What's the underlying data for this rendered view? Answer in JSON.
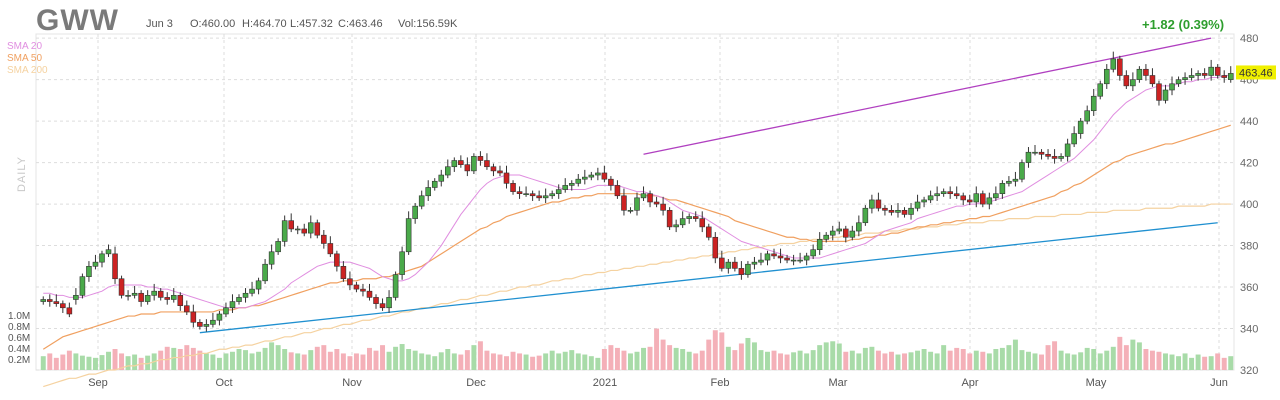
{
  "header": {
    "ticker": "GWW",
    "date": "Jun 3",
    "open": "O:460.00",
    "high": "H:464.70",
    "low": "L:457.32",
    "close": "C:463.46",
    "volume": "Vol:156.59K",
    "change": "+1.82 (0.39%)",
    "last_price": "463.46",
    "timeframe": "DAILY"
  },
  "legend": [
    {
      "label": "SMA 20",
      "color": "#e08ee0"
    },
    {
      "label": "SMA 50",
      "color": "#f0a060"
    },
    {
      "label": "SMA 200",
      "color": "#f5d2a0"
    }
  ],
  "colors": {
    "up": "#4aaa4a",
    "down": "#cc2222",
    "vol_up": "#a8dba8",
    "vol_down": "#f4b0b8",
    "upper_trend": "#b040c0",
    "lower_trend": "#2090d0",
    "price_tag": "#f0f000",
    "grid": "#dddddd"
  },
  "chart_data": {
    "type": "candlestick",
    "x_labels": [
      "Sep",
      "Oct",
      "Nov",
      "Dec",
      "2021",
      "Feb",
      "Mar",
      "Apr",
      "May",
      "Jun"
    ],
    "y_ticks": [
      320,
      340,
      360,
      380,
      400,
      420,
      440,
      460,
      480
    ],
    "volume_ticks": [
      "0.2M",
      "0.4M",
      "0.6M",
      "0.8M",
      "1.0M"
    ],
    "y_range": [
      320,
      482
    ],
    "volume_range": [
      0,
      1.05
    ],
    "grid": true,
    "legend_position": "top-left",
    "closes": [
      354,
      353,
      352,
      350,
      347,
      356,
      365,
      370,
      372,
      376,
      378,
      364,
      356,
      356,
      357,
      353,
      356,
      358,
      355,
      354,
      356,
      351,
      348,
      343,
      341,
      342,
      344,
      347,
      350,
      353,
      355,
      357,
      359,
      363,
      371,
      377,
      382,
      392,
      388,
      388,
      386,
      391,
      385,
      381,
      376,
      370,
      364,
      361,
      359,
      358,
      355,
      352,
      350,
      355,
      366,
      377,
      393,
      399,
      404,
      408,
      411,
      414,
      418,
      421,
      419,
      416,
      423,
      421,
      418,
      416,
      415,
      410,
      406,
      405,
      405,
      404,
      403,
      404,
      405,
      407,
      409,
      410,
      412,
      413,
      414,
      415,
      412,
      409,
      404,
      397,
      397,
      403,
      405,
      401,
      400,
      397,
      389,
      390,
      393,
      394,
      393,
      389,
      384,
      374,
      369,
      372,
      369,
      366,
      371,
      372,
      373,
      376,
      375,
      374,
      373,
      373,
      373,
      375,
      378,
      383,
      385,
      387,
      388,
      384,
      387,
      391,
      398,
      402,
      398,
      397,
      396,
      397,
      395,
      398,
      401,
      402,
      404,
      405,
      406,
      405,
      404,
      402,
      401,
      405,
      400,
      403,
      405,
      410,
      411,
      412,
      420,
      425,
      425,
      424,
      423,
      422,
      423,
      429,
      434,
      440,
      445,
      452,
      458,
      465,
      470,
      462,
      457,
      460,
      465,
      462,
      458,
      450,
      455,
      458,
      460,
      461,
      462,
      463,
      462,
      466,
      462,
      461,
      463
    ],
    "opens": [
      353,
      354,
      353,
      352,
      350,
      354,
      356,
      365,
      370,
      372,
      376,
      376,
      364,
      356,
      356,
      357,
      353,
      356,
      358,
      355,
      354,
      356,
      351,
      348,
      343,
      341,
      342,
      344,
      347,
      350,
      353,
      355,
      357,
      359,
      363,
      371,
      377,
      382,
      392,
      388,
      388,
      386,
      391,
      385,
      381,
      376,
      370,
      364,
      361,
      359,
      358,
      355,
      352,
      350,
      355,
      366,
      377,
      393,
      399,
      404,
      408,
      411,
      414,
      418,
      421,
      419,
      416,
      423,
      421,
      418,
      416,
      415,
      410,
      406,
      405,
      405,
      404,
      403,
      404,
      405,
      407,
      409,
      410,
      412,
      413,
      414,
      415,
      412,
      409,
      404,
      397,
      397,
      403,
      405,
      401,
      400,
      397,
      389,
      390,
      393,
      394,
      393,
      389,
      384,
      374,
      369,
      372,
      369,
      366,
      371,
      372,
      373,
      376,
      375,
      374,
      373,
      373,
      373,
      375,
      378,
      383,
      385,
      387,
      388,
      384,
      387,
      391,
      398,
      402,
      398,
      397,
      396,
      397,
      395,
      398,
      401,
      402,
      404,
      405,
      406,
      405,
      404,
      402,
      401,
      405,
      400,
      403,
      405,
      410,
      411,
      412,
      420,
      425,
      425,
      424,
      423,
      422,
      423,
      429,
      434,
      440,
      445,
      452,
      458,
      465,
      470,
      462,
      457,
      460,
      465,
      462,
      458,
      450,
      455,
      458,
      460,
      461,
      462,
      463,
      462,
      466,
      462,
      460
    ],
    "volumes": [
      0.25,
      0.3,
      0.22,
      0.28,
      0.35,
      0.3,
      0.26,
      0.24,
      0.22,
      0.27,
      0.33,
      0.38,
      0.3,
      0.25,
      0.28,
      0.22,
      0.26,
      0.3,
      0.35,
      0.42,
      0.4,
      0.38,
      0.45,
      0.4,
      0.35,
      0.3,
      0.28,
      0.22,
      0.3,
      0.33,
      0.38,
      0.36,
      0.3,
      0.33,
      0.4,
      0.5,
      0.45,
      0.38,
      0.32,
      0.3,
      0.28,
      0.36,
      0.42,
      0.45,
      0.33,
      0.38,
      0.3,
      0.25,
      0.3,
      0.28,
      0.4,
      0.35,
      0.45,
      0.33,
      0.42,
      0.47,
      0.38,
      0.35,
      0.3,
      0.28,
      0.25,
      0.32,
      0.38,
      0.3,
      0.28,
      0.36,
      0.45,
      0.52,
      0.35,
      0.3,
      0.28,
      0.25,
      0.33,
      0.3,
      0.28,
      0.24,
      0.26,
      0.3,
      0.35,
      0.3,
      0.33,
      0.36,
      0.3,
      0.28,
      0.25,
      0.22,
      0.38,
      0.45,
      0.4,
      0.35,
      0.3,
      0.33,
      0.4,
      0.42,
      0.75,
      0.55,
      0.45,
      0.4,
      0.38,
      0.33,
      0.3,
      0.35,
      0.55,
      0.72,
      0.68,
      0.42,
      0.36,
      0.48,
      0.58,
      0.5,
      0.36,
      0.33,
      0.35,
      0.3,
      0.28,
      0.32,
      0.35,
      0.3,
      0.36,
      0.45,
      0.5,
      0.52,
      0.48,
      0.33,
      0.35,
      0.3,
      0.4,
      0.42,
      0.35,
      0.3,
      0.33,
      0.28,
      0.3,
      0.32,
      0.35,
      0.38,
      0.33,
      0.3,
      0.45,
      0.35,
      0.4,
      0.38,
      0.3,
      0.35,
      0.33,
      0.3,
      0.38,
      0.4,
      0.45,
      0.55,
      0.36,
      0.33,
      0.3,
      0.28,
      0.45,
      0.52,
      0.35,
      0.3,
      0.28,
      0.32,
      0.4,
      0.38,
      0.3,
      0.35,
      0.42,
      0.6,
      0.45,
      0.55,
      0.5,
      0.38,
      0.35,
      0.33,
      0.3,
      0.28,
      0.25,
      0.3,
      0.22,
      0.28,
      0.24,
      0.25,
      0.3,
      0.22,
      0.25,
      0.2
    ],
    "sma20": [
      357,
      357,
      356,
      356,
      355,
      355,
      355,
      356,
      357,
      358,
      360,
      361,
      361,
      361,
      361,
      361,
      360,
      360,
      359,
      359,
      358,
      357,
      356,
      355,
      354,
      353,
      352,
      351,
      350,
      350,
      350,
      350,
      351,
      352,
      353,
      355,
      357,
      359,
      362,
      364,
      366,
      368,
      370,
      371,
      372,
      372,
      372,
      372,
      371,
      370,
      369,
      367,
      365,
      364,
      363,
      363,
      364,
      366,
      369,
      372,
      376,
      380,
      385,
      390,
      395,
      399,
      403,
      407,
      410,
      412,
      413,
      414,
      414,
      414,
      413,
      412,
      411,
      410,
      409,
      408,
      407,
      407,
      407,
      407,
      408,
      409,
      409,
      409,
      409,
      408,
      407,
      406,
      406,
      405,
      404,
      403,
      401,
      399,
      397,
      396,
      395,
      394,
      392,
      390,
      388,
      386,
      384,
      382,
      381,
      380,
      379,
      378,
      377,
      376,
      375,
      374,
      374,
      374,
      374,
      374,
      375,
      376,
      377,
      378,
      379,
      380,
      381,
      383,
      385,
      387,
      388,
      389,
      390,
      391,
      393,
      394,
      395,
      396,
      397,
      398,
      399,
      399,
      400,
      400,
      401,
      401,
      402,
      403,
      404,
      405,
      406,
      408,
      410,
      412,
      414,
      416,
      418,
      420,
      422,
      425,
      428,
      431,
      435,
      439,
      443,
      446,
      449,
      451,
      453,
      455,
      456,
      457,
      457,
      457,
      458,
      459,
      459,
      460,
      460,
      461,
      461,
      462,
      462
    ],
    "sma50": [
      330,
      332,
      334,
      336,
      337,
      338,
      339,
      340,
      341,
      342,
      343,
      344,
      345,
      346,
      346,
      347,
      347,
      347,
      348,
      348,
      348,
      348,
      348,
      348,
      348,
      348,
      348,
      349,
      349,
      349,
      350,
      350,
      351,
      351,
      352,
      353,
      354,
      355,
      356,
      357,
      358,
      359,
      360,
      361,
      362,
      362,
      363,
      363,
      363,
      364,
      364,
      364,
      365,
      365,
      366,
      367,
      368,
      369,
      370,
      372,
      374,
      376,
      378,
      380,
      382,
      384,
      386,
      388,
      389,
      391,
      392,
      394,
      395,
      396,
      397,
      398,
      399,
      400,
      401,
      401,
      402,
      403,
      403,
      404,
      404,
      405,
      405,
      405,
      405,
      405,
      405,
      405,
      404,
      404,
      404,
      403,
      402,
      402,
      401,
      400,
      399,
      398,
      397,
      396,
      395,
      394,
      392,
      391,
      390,
      389,
      388,
      387,
      386,
      385,
      384,
      384,
      383,
      383,
      382,
      382,
      382,
      382,
      382,
      382,
      383,
      383,
      384,
      384,
      385,
      385,
      386,
      386,
      387,
      388,
      389,
      389,
      390,
      390,
      391,
      391,
      392,
      392,
      393,
      393,
      394,
      394,
      395,
      396,
      397,
      398,
      399,
      400,
      401,
      402,
      403,
      404,
      406,
      407,
      409,
      410,
      412,
      414,
      416,
      418,
      420,
      421,
      423,
      424,
      425,
      426,
      427,
      428,
      429,
      429,
      430,
      431,
      432,
      433,
      434,
      435,
      436,
      437,
      438
    ],
    "sma200": [
      312,
      313,
      314,
      315,
      316,
      316,
      317,
      318,
      318,
      319,
      320,
      320,
      321,
      322,
      322,
      323,
      323,
      324,
      325,
      325,
      326,
      326,
      327,
      327,
      328,
      328,
      329,
      330,
      330,
      331,
      331,
      332,
      332,
      333,
      334,
      334,
      335,
      336,
      336,
      337,
      338,
      338,
      339,
      340,
      340,
      341,
      342,
      342,
      343,
      344,
      344,
      345,
      346,
      346,
      347,
      348,
      348,
      349,
      350,
      350,
      351,
      352,
      352,
      353,
      354,
      354,
      355,
      356,
      356,
      357,
      358,
      358,
      359,
      360,
      360,
      361,
      361,
      362,
      363,
      363,
      364,
      364,
      365,
      366,
      366,
      367,
      367,
      368,
      368,
      369,
      369,
      370,
      370,
      371,
      371,
      372,
      372,
      373,
      373,
      374,
      374,
      375,
      375,
      376,
      376,
      377,
      377,
      378,
      378,
      379,
      379,
      380,
      380,
      381,
      381,
      381,
      382,
      382,
      383,
      383,
      383,
      384,
      384,
      385,
      385,
      385,
      386,
      386,
      386,
      387,
      387,
      387,
      388,
      388,
      388,
      389,
      389,
      389,
      390,
      390,
      390,
      391,
      391,
      391,
      391,
      392,
      392,
      392,
      393,
      393,
      393,
      393,
      394,
      394,
      394,
      394,
      395,
      395,
      395,
      395,
      396,
      396,
      396,
      396,
      397,
      397,
      397,
      397,
      397,
      398,
      398,
      398,
      398,
      398,
      399,
      399,
      399,
      399,
      399,
      400,
      400,
      400,
      400
    ],
    "upper_trendline": [
      [
        92,
        424
      ],
      [
        179,
        480
      ]
    ],
    "lower_trendline": [
      [
        24,
        338
      ],
      [
        180,
        391
      ]
    ]
  }
}
